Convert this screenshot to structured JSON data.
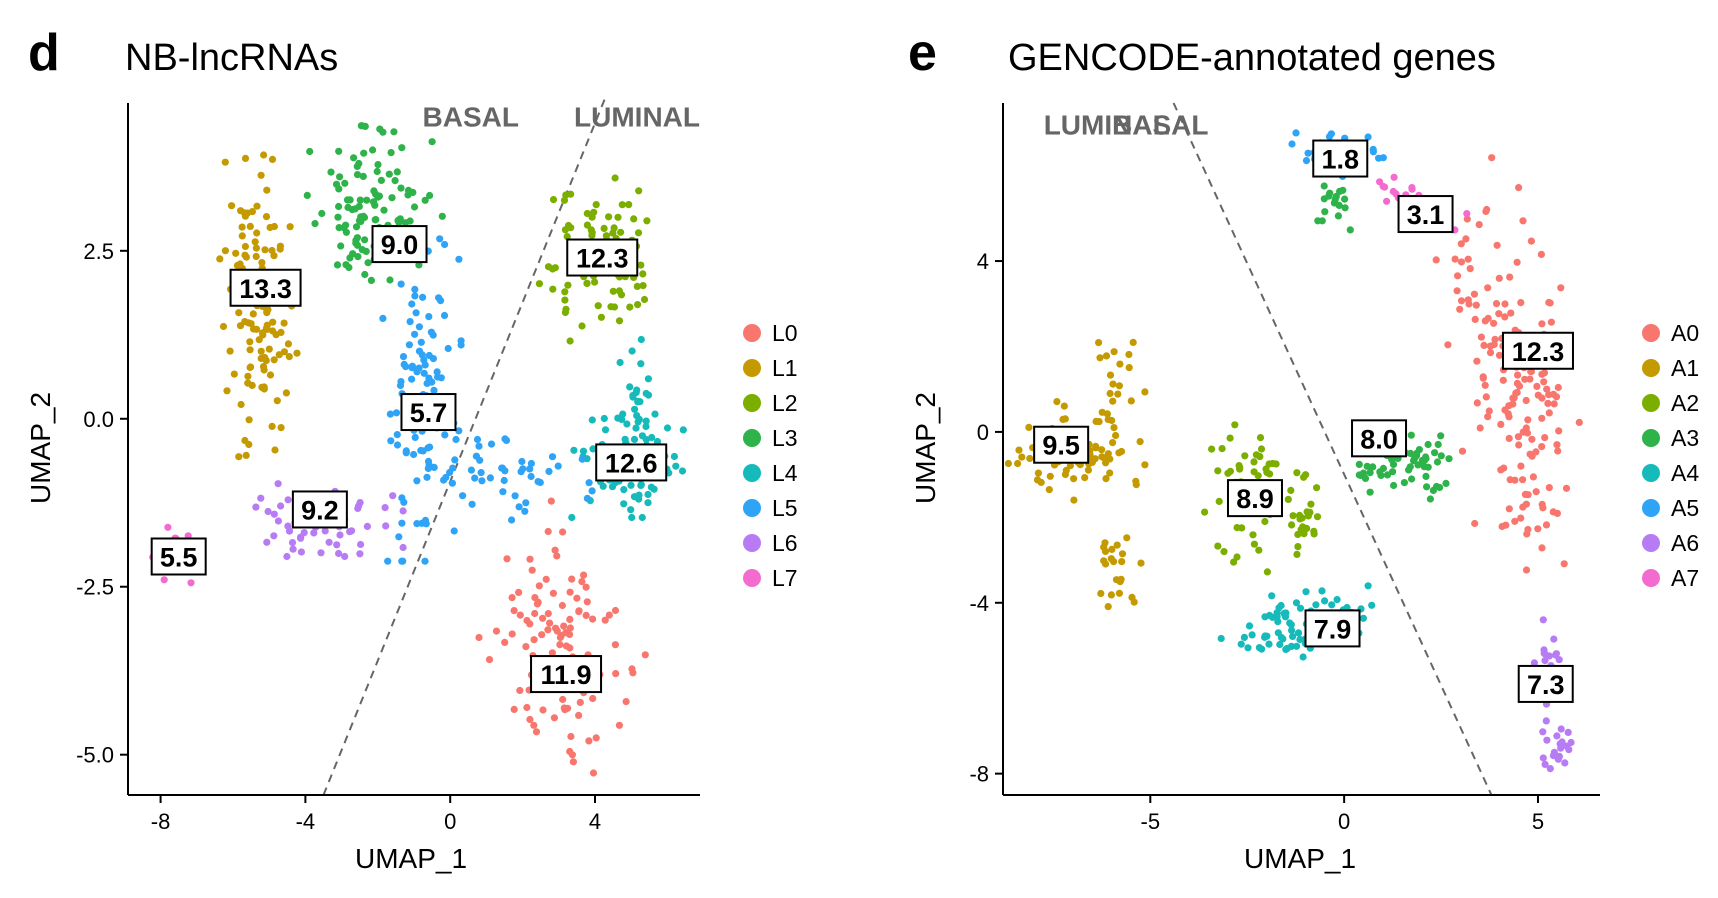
{
  "chart_data": [
    {
      "type": "scatter",
      "panel_letter": "d",
      "title": "NB-lncRNAs",
      "xlabel": "UMAP_1",
      "ylabel": "UMAP_2",
      "xlim": [
        -8.9,
        6.9
      ],
      "ylim": [
        -5.6,
        4.7
      ],
      "xticks": [
        -8,
        -4,
        0,
        4
      ],
      "xtick_labels": [
        "-8",
        "-4",
        "0",
        "4"
      ],
      "yticks": [
        -5,
        -2.5,
        0,
        2.5
      ],
      "ytick_labels": [
        "-5.0",
        "-2.5",
        "0.0",
        "2.5"
      ],
      "grid": false,
      "legend_position": "right",
      "divider": {
        "x1": -3.5,
        "y1": -5.6,
        "x2": 4.3,
        "y2": 4.8
      },
      "regions": [
        {
          "text": "BASAL",
          "x": 1.9,
          "y": 4.5
        },
        {
          "text": "LUMINAL",
          "x": 6.9,
          "y": 4.5
        }
      ],
      "series": [
        {
          "name": "L0",
          "color": "#F8766D",
          "clusters": [
            {
              "cx": 3.0,
              "cy": -3.5,
              "sx": 0.9,
              "sy": 0.8,
              "n": 120,
              "rot": -0.6
            }
          ]
        },
        {
          "name": "L1",
          "color": "#C49A00",
          "clusters": [
            {
              "cx": -5.3,
              "cy": 1.7,
              "sx": 0.45,
              "sy": 1.0,
              "n": 130,
              "rot": 0.1
            }
          ]
        },
        {
          "name": "L2",
          "color": "#7CAE00",
          "clusters": [
            {
              "cx": 4.2,
              "cy": 2.3,
              "sx": 0.8,
              "sy": 0.55,
              "n": 100,
              "rot": 0.2
            }
          ]
        },
        {
          "name": "L3",
          "color": "#2EB24A",
          "clusters": [
            {
              "cx": -2.1,
              "cy": 3.0,
              "sx": 0.85,
              "sy": 0.6,
              "n": 110,
              "rot": -0.1
            }
          ]
        },
        {
          "name": "L4",
          "color": "#17BABA",
          "clusters": [
            {
              "cx": 4.9,
              "cy": -0.7,
              "sx": 0.7,
              "sy": 0.35,
              "n": 90,
              "rot": 0.0
            },
            {
              "cx": 5.2,
              "cy": 0.3,
              "sx": 0.3,
              "sy": 0.4,
              "n": 20,
              "rot": 0.0
            }
          ]
        },
        {
          "name": "L5",
          "color": "#2FA4F7",
          "clusters": [
            {
              "cx": -0.8,
              "cy": 0.3,
              "sx": 0.5,
              "sy": 1.1,
              "n": 100,
              "rot": 0.0
            },
            {
              "cx": 1.5,
              "cy": -0.9,
              "sx": 1.1,
              "sy": 0.3,
              "n": 50,
              "rot": 0.0
            }
          ]
        },
        {
          "name": "L6",
          "color": "#B77CF4",
          "clusters": [
            {
              "cx": -3.5,
              "cy": -1.5,
              "sx": 1.0,
              "sy": 0.25,
              "n": 70,
              "rot": 0.0
            }
          ]
        },
        {
          "name": "L7",
          "color": "#F46BCF",
          "clusters": [
            {
              "cx": -7.6,
              "cy": -2.1,
              "sx": 0.28,
              "sy": 0.22,
              "n": 18,
              "rot": 0.0
            }
          ]
        }
      ],
      "cluster_labels": [
        {
          "text": "13.3",
          "x": -5.1,
          "y": 1.95
        },
        {
          "text": "9.0",
          "x": -1.4,
          "y": 2.6
        },
        {
          "text": "12.3",
          "x": 4.2,
          "y": 2.4
        },
        {
          "text": "5.7",
          "x": -0.6,
          "y": 0.1
        },
        {
          "text": "12.6",
          "x": 5.0,
          "y": -0.65
        },
        {
          "text": "9.2",
          "x": -3.6,
          "y": -1.35
        },
        {
          "text": "5.5",
          "x": -7.5,
          "y": -2.05
        },
        {
          "text": "11.9",
          "x": 3.2,
          "y": -3.8
        }
      ]
    },
    {
      "type": "scatter",
      "panel_letter": "e",
      "title": "GENCODE-annotated genes",
      "xlabel": "UMAP_1",
      "ylabel": "UMAP_2",
      "xlim": [
        -8.8,
        6.6
      ],
      "ylim": [
        -8.5,
        7.7
      ],
      "xticks": [
        -5,
        0,
        5
      ],
      "xtick_labels": [
        "-5",
        "0",
        "5"
      ],
      "yticks": [
        -8,
        -4,
        0,
        4
      ],
      "ytick_labels": [
        "-8",
        "-4",
        "0",
        "4"
      ],
      "grid": false,
      "legend_position": "right",
      "divider": {
        "x1": -4.4,
        "y1": 7.7,
        "x2": 3.8,
        "y2": -8.5
      },
      "regions": [
        {
          "text": "LUMINAL",
          "x": -4.5,
          "y": 7.2
        },
        {
          "text": "BASAL",
          "x": -3.5,
          "y": 7.2
        }
      ],
      "series": [
        {
          "name": "A0",
          "color": "#F8766D",
          "clusters": [
            {
              "cx": 4.3,
              "cy": 1.6,
              "sx": 0.7,
              "sy": 2.2,
              "n": 170,
              "rot": 0.15
            }
          ]
        },
        {
          "name": "A1",
          "color": "#C49A00",
          "clusters": [
            {
              "cx": -6.9,
              "cy": -0.5,
              "sx": 0.8,
              "sy": 0.55,
              "n": 90,
              "rot": 0.0
            },
            {
              "cx": -5.8,
              "cy": 1.2,
              "sx": 0.3,
              "sy": 0.5,
              "n": 18,
              "rot": 0.0
            },
            {
              "cx": -5.9,
              "cy": -3.2,
              "sx": 0.3,
              "sy": 0.55,
              "n": 22,
              "rot": 0.0
            }
          ]
        },
        {
          "name": "A2",
          "color": "#7CAE00",
          "clusters": [
            {
              "cx": -2.5,
              "cy": -1.4,
              "sx": 0.5,
              "sy": 0.9,
              "n": 60,
              "rot": 0.0
            },
            {
              "cx": -1.0,
              "cy": -2.0,
              "sx": 0.3,
              "sy": 0.6,
              "n": 25,
              "rot": 0.0
            }
          ]
        },
        {
          "name": "A3",
          "color": "#2EB24A",
          "clusters": [
            {
              "cx": 1.6,
              "cy": -0.8,
              "sx": 0.55,
              "sy": 0.35,
              "n": 60,
              "rot": 0.0
            },
            {
              "cx": -0.3,
              "cy": 5.5,
              "sx": 0.25,
              "sy": 0.35,
              "n": 20,
              "rot": 0.0
            }
          ]
        },
        {
          "name": "A4",
          "color": "#17BABA",
          "clusters": [
            {
              "cx": -1.2,
              "cy": -4.6,
              "sx": 0.9,
              "sy": 0.4,
              "n": 70,
              "rot": 0.2
            }
          ]
        },
        {
          "name": "A5",
          "color": "#2FA4F7",
          "clusters": [
            {
              "cx": -0.2,
              "cy": 6.5,
              "sx": 0.55,
              "sy": 0.25,
              "n": 40,
              "rot": 0.0
            }
          ]
        },
        {
          "name": "A6",
          "color": "#B77CF4",
          "clusters": [
            {
              "cx": 5.3,
              "cy": -5.7,
              "sx": 0.18,
              "sy": 0.6,
              "n": 30,
              "rot": 0.0
            },
            {
              "cx": 5.5,
              "cy": -7.4,
              "sx": 0.2,
              "sy": 0.3,
              "n": 18,
              "rot": 0.0
            }
          ]
        },
        {
          "name": "A7",
          "color": "#F46BCF",
          "clusters": [
            {
              "cx": 1.9,
              "cy": 5.3,
              "sx": 0.7,
              "sy": 0.2,
              "n": 20,
              "rot": -0.5
            }
          ]
        }
      ],
      "cluster_labels": [
        {
          "text": "1.8",
          "x": -0.1,
          "y": 6.4
        },
        {
          "text": "3.1",
          "x": 2.1,
          "y": 5.1
        },
        {
          "text": "12.3",
          "x": 5.0,
          "y": 1.9
        },
        {
          "text": "9.5",
          "x": -7.3,
          "y": -0.3
        },
        {
          "text": "8.0",
          "x": 0.9,
          "y": -0.15
        },
        {
          "text": "8.9",
          "x": -2.3,
          "y": -1.55
        },
        {
          "text": "7.9",
          "x": -0.3,
          "y": -4.6
        },
        {
          "text": "7.3",
          "x": 5.2,
          "y": -5.9
        }
      ]
    }
  ]
}
